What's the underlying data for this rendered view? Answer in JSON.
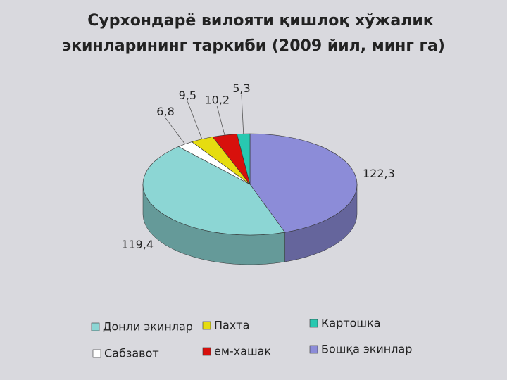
{
  "chart_data": {
    "type": "pie",
    "title": [
      "Сурхондарё вилояти қишлоқ хўжалик",
      "экинларининг таркиби (2009 йил, минг га)"
    ],
    "categories": [
      "Бошқа экинлар",
      "Донли экинлар",
      "Сабзавот",
      "Пахта",
      "ем-хашак",
      "Картошка"
    ],
    "values": [
      122.3,
      119.4,
      6.8,
      9.5,
      10.2,
      5.3
    ],
    "value_labels": [
      "122,3",
      "119,4",
      "6,8",
      "9,5",
      "10,2",
      "5,3"
    ],
    "colors": [
      "#8c8cd8",
      "#8cd6d4",
      "#ffffff",
      "#e6dc10",
      "#d8100c",
      "#28c8b0"
    ]
  }
}
